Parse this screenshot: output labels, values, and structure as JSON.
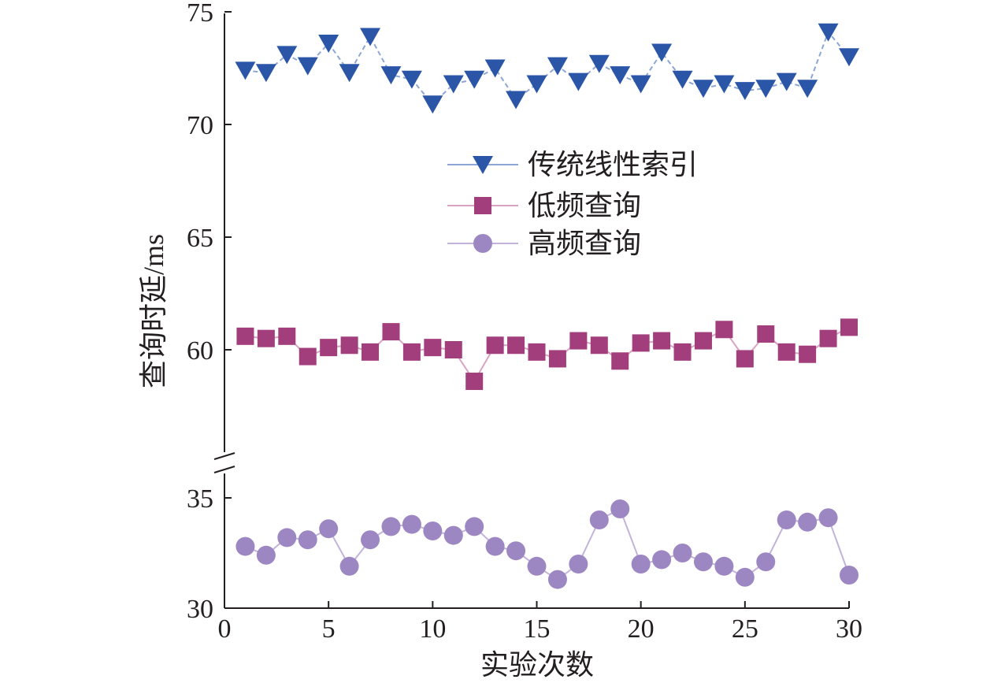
{
  "chart_data": {
    "type": "line",
    "xlabel": "实验次数",
    "ylabel": "查询时延/ms",
    "xlim": [
      0,
      30
    ],
    "x_ticks": [
      "0",
      "5",
      "10",
      "15",
      "20",
      "25",
      "30"
    ],
    "ylim": [
      30,
      75
    ],
    "y_axis_break": [
      36,
      55
    ],
    "y_ticks": [
      "30",
      "35",
      "60",
      "65",
      "70",
      "75"
    ],
    "grid": false,
    "legend_position": "upper-center",
    "x": [
      1,
      2,
      3,
      4,
      5,
      6,
      7,
      8,
      9,
      10,
      11,
      12,
      13,
      14,
      15,
      16,
      17,
      18,
      19,
      20,
      21,
      22,
      23,
      24,
      25,
      26,
      27,
      28,
      29,
      30
    ],
    "series": [
      {
        "name": "传统线性索引",
        "marker": "triangle-down",
        "color": "#2b56a8",
        "line_color": "#8ea6d6",
        "values": [
          72.4,
          72.3,
          73.1,
          72.6,
          73.6,
          72.3,
          73.9,
          72.2,
          72.0,
          70.9,
          71.8,
          72.0,
          72.5,
          71.1,
          71.8,
          72.6,
          71.9,
          72.7,
          72.2,
          71.8,
          73.2,
          72.0,
          71.6,
          71.8,
          71.5,
          71.6,
          71.9,
          71.6,
          74.1,
          73.0
        ]
      },
      {
        "name": "低频查询",
        "marker": "square",
        "color": "#a23e7c",
        "line_color": "#d9a3c4",
        "values": [
          60.6,
          60.5,
          60.6,
          59.7,
          60.1,
          60.2,
          59.9,
          60.8,
          59.9,
          60.1,
          60.0,
          58.6,
          60.2,
          60.2,
          59.9,
          59.6,
          60.4,
          60.2,
          59.5,
          60.3,
          60.4,
          59.9,
          60.4,
          60.9,
          59.6,
          60.7,
          59.9,
          59.8,
          60.5,
          61.0
        ]
      },
      {
        "name": "高频查询",
        "marker": "circle",
        "color": "#9d87c2",
        "line_color": "#c2b3db",
        "values": [
          32.8,
          32.4,
          33.2,
          33.1,
          33.6,
          31.9,
          33.1,
          33.7,
          33.8,
          33.5,
          33.3,
          33.7,
          32.8,
          32.6,
          31.9,
          31.3,
          32.0,
          34.0,
          34.5,
          32.0,
          32.2,
          32.5,
          32.1,
          31.9,
          31.4,
          32.1,
          34.0,
          33.9,
          34.1,
          31.5
        ]
      }
    ]
  }
}
